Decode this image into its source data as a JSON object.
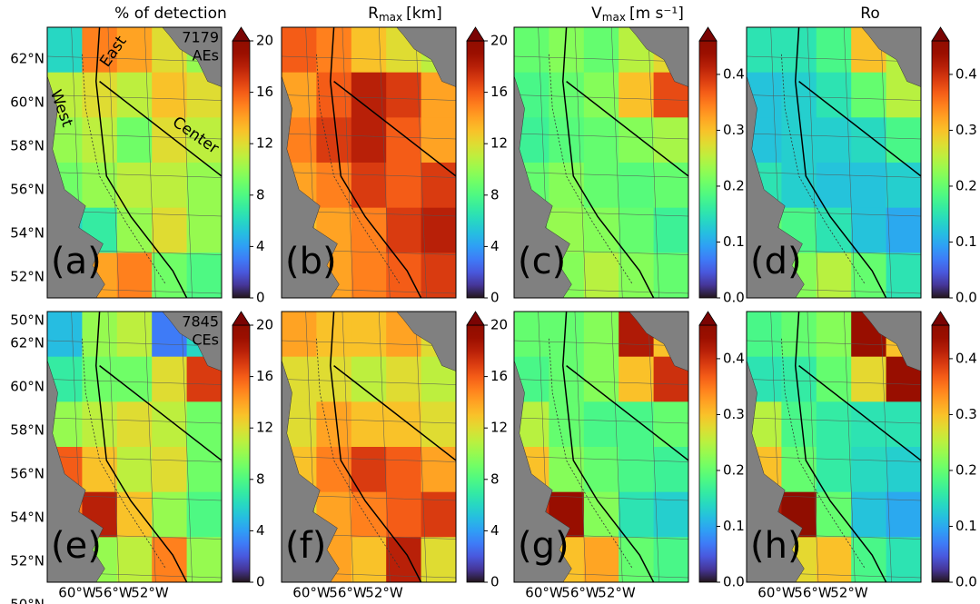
{
  "chart_data": [
    {
      "type": "heatmap",
      "title": "% of detection",
      "label": "(a)",
      "annotation": [
        "7179",
        "AEs"
      ],
      "region_labels": [
        "East",
        "West",
        "Center"
      ],
      "values": [
        [
          6,
          15,
          14,
          12,
          10
        ],
        [
          11,
          12,
          11,
          13,
          12
        ],
        [
          10,
          11,
          9,
          12,
          11
        ],
        [
          9,
          10,
          11,
          11,
          10
        ],
        [
          6,
          7,
          10,
          12,
          10
        ],
        [
          11,
          14,
          15,
          9,
          8
        ]
      ],
      "clim": [
        0,
        20
      ],
      "cticks": [
        0,
        4,
        8,
        12,
        16,
        20
      ]
    },
    {
      "type": "heatmap",
      "title": "R",
      "title_sub": "max",
      "title_unit": "[km]",
      "label": "(b)",
      "values": [
        [
          16,
          15,
          13,
          12,
          11
        ],
        [
          14,
          16,
          18,
          17,
          14
        ],
        [
          15,
          17,
          18,
          16,
          14
        ],
        [
          14,
          15,
          17,
          16,
          17
        ],
        [
          13,
          14,
          15,
          17,
          18
        ],
        [
          12,
          14,
          15,
          16,
          17
        ]
      ],
      "clim": [
        0,
        20
      ],
      "cticks": [
        0,
        4,
        8,
        12,
        16,
        20
      ]
    },
    {
      "type": "heatmap",
      "title": "V",
      "title_sub": "max",
      "title_unit": "[m s⁻¹]",
      "label": "(c)",
      "values": [
        [
          0.2,
          0.22,
          0.2,
          0.25,
          0.28
        ],
        [
          0.18,
          0.2,
          0.22,
          0.3,
          0.38
        ],
        [
          0.17,
          0.19,
          0.2,
          0.22,
          0.24
        ],
        [
          0.2,
          0.22,
          0.2,
          0.19,
          0.2
        ],
        [
          0.22,
          0.23,
          0.22,
          0.2,
          0.17
        ],
        [
          0.2,
          0.22,
          0.25,
          0.22,
          0.2
        ]
      ],
      "clim": [
        0,
        0.46
      ],
      "cticks": [
        {
          "value": 0,
          "label": "0.0"
        },
        0.1,
        0.2,
        0.3,
        0.4
      ]
    },
    {
      "type": "heatmap",
      "title": "Ro",
      "label": "(d)",
      "values": [
        [
          0.15,
          0.15,
          0.18,
          0.3,
          0.25
        ],
        [
          0.12,
          0.13,
          0.15,
          0.2,
          0.25
        ],
        [
          0.12,
          0.13,
          0.13,
          0.14,
          0.18
        ],
        [
          0.15,
          0.13,
          0.12,
          0.12,
          0.13
        ],
        [
          0.2,
          0.18,
          0.15,
          0.12,
          0.1
        ],
        [
          0.2,
          0.22,
          0.25,
          0.2,
          0.15
        ]
      ],
      "clim": [
        0,
        0.46
      ],
      "cticks": [
        {
          "value": 0,
          "label": "0.0"
        },
        0.1,
        0.2,
        0.3,
        0.4
      ]
    },
    {
      "type": "heatmap",
      "label": "(e)",
      "annotation": [
        "7845",
        "CEs"
      ],
      "values": [
        [
          5,
          10,
          11,
          3,
          6
        ],
        [
          7,
          9,
          9,
          12,
          17
        ],
        [
          10,
          11,
          12,
          11,
          9
        ],
        [
          16,
          13,
          11,
          12,
          9
        ],
        [
          15,
          18,
          13,
          10,
          8
        ],
        [
          12,
          10,
          11,
          15,
          10
        ]
      ],
      "clim": [
        0,
        20
      ],
      "cticks": [
        0,
        4,
        8,
        12,
        16,
        20
      ]
    },
    {
      "type": "heatmap",
      "label": "(f)",
      "values": [
        [
          14,
          13,
          13,
          14,
          12
        ],
        [
          12,
          12,
          11,
          12,
          11
        ],
        [
          12,
          14,
          13,
          13,
          12
        ],
        [
          13,
          15,
          17,
          16,
          14
        ],
        [
          12,
          14,
          15,
          16,
          17
        ],
        [
          12,
          14,
          13,
          18,
          12
        ]
      ],
      "clim": [
        0,
        20
      ],
      "cticks": [
        0,
        4,
        8,
        12,
        16,
        20
      ]
    },
    {
      "type": "heatmap",
      "label": "(g)",
      "values": [
        [
          0.2,
          0.2,
          0.22,
          0.42,
          0.3
        ],
        [
          0.18,
          0.2,
          0.22,
          0.3,
          0.4
        ],
        [
          0.25,
          0.2,
          0.18,
          0.18,
          0.2
        ],
        [
          0.3,
          0.22,
          0.2,
          0.18,
          0.17
        ],
        [
          0.4,
          0.44,
          0.22,
          0.15,
          0.13
        ],
        [
          0.25,
          0.3,
          0.32,
          0.2,
          0.18
        ]
      ],
      "clim": [
        0,
        0.46
      ],
      "cticks": [
        {
          "value": 0,
          "label": "0.0"
        },
        0.1,
        0.2,
        0.3,
        0.4
      ]
    },
    {
      "type": "heatmap",
      "label": "(h)",
      "values": [
        [
          0.18,
          0.2,
          0.22,
          0.44,
          0.3
        ],
        [
          0.15,
          0.16,
          0.2,
          0.28,
          0.44
        ],
        [
          0.25,
          0.18,
          0.16,
          0.15,
          0.15
        ],
        [
          0.3,
          0.2,
          0.16,
          0.14,
          0.13
        ],
        [
          0.42,
          0.46,
          0.2,
          0.12,
          0.1
        ],
        [
          0.22,
          0.28,
          0.3,
          0.18,
          0.15
        ]
      ],
      "clim": [
        0,
        0.46
      ],
      "cticks": [
        {
          "value": 0,
          "label": "0.0"
        },
        0.1,
        0.2,
        0.3,
        0.4
      ]
    }
  ],
  "map": {
    "lat_ticks": [
      "62°N",
      "60°N",
      "58°N",
      "56°N",
      "54°N",
      "52°N",
      "50°N"
    ],
    "lon_ticks": [
      "60°W",
      "56°W",
      "52°W"
    ]
  }
}
